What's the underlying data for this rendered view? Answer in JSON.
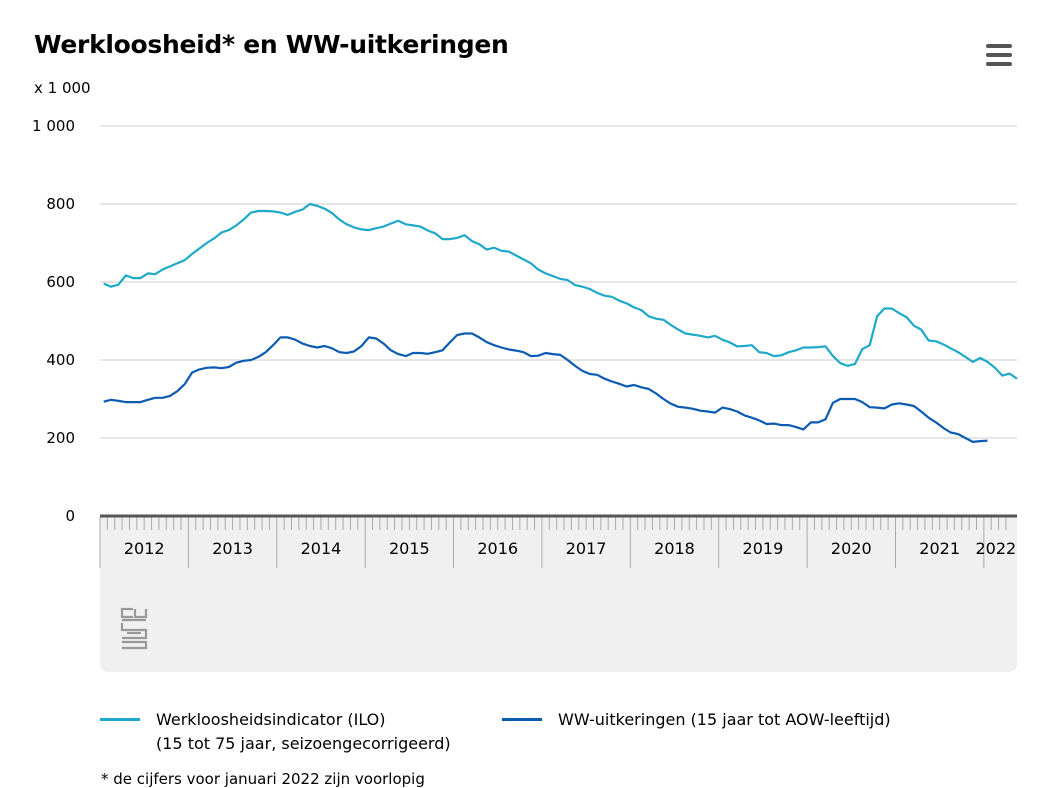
{
  "header": {
    "title": "Werkloosheid* en WW-uitkeringen",
    "unit": "x 1 000",
    "menu_icon": "hamburger-menu-icon"
  },
  "chart_data": {
    "type": "line",
    "title": "Werkloosheid* en WW-uitkeringen",
    "ylabel": "x 1 000",
    "ylim": [
      0,
      1000
    ],
    "yticks": [
      0,
      200,
      400,
      600,
      800,
      1000
    ],
    "ytick_labels": [
      "0",
      "200",
      "400",
      "600",
      "800",
      "1 000"
    ],
    "xlim": [
      "2012-01",
      "2022-01"
    ],
    "x_tick_labels": [
      "2012",
      "2013",
      "2014",
      "2015",
      "2016",
      "2017",
      "2018",
      "2019",
      "2020",
      "2021",
      "2022"
    ],
    "grid": "horizontal",
    "legend": "bottom",
    "series": [
      {
        "name": "Werkloosheidsindicator (ILO)\n(15 tot 75 jaar, seizoengecorrigeerd)",
        "color": "#1fa9c9",
        "points": [
          [
            "2012-01",
            596
          ],
          [
            "2012-02",
            588
          ],
          [
            "2012-03",
            593
          ],
          [
            "2012-04",
            617
          ],
          [
            "2012-05",
            610
          ],
          [
            "2012-06",
            610
          ],
          [
            "2012-07",
            622
          ],
          [
            "2012-08",
            620
          ],
          [
            "2012-09",
            632
          ],
          [
            "2012-10",
            640
          ],
          [
            "2012-11",
            648
          ],
          [
            "2012-12",
            656
          ],
          [
            "2013-01",
            672
          ],
          [
            "2013-02",
            686
          ],
          [
            "2013-03",
            700
          ],
          [
            "2013-04",
            712
          ],
          [
            "2013-05",
            727
          ],
          [
            "2013-06",
            733
          ],
          [
            "2013-07",
            745
          ],
          [
            "2013-08",
            760
          ],
          [
            "2013-09",
            778
          ],
          [
            "2013-10",
            782
          ],
          [
            "2013-11",
            782
          ],
          [
            "2013-12",
            781
          ],
          [
            "2014-01",
            778
          ],
          [
            "2014-02",
            772
          ],
          [
            "2014-03",
            780
          ],
          [
            "2014-04",
            786
          ],
          [
            "2014-05",
            800
          ],
          [
            "2014-06",
            795
          ],
          [
            "2014-07",
            788
          ],
          [
            "2014-08",
            777
          ],
          [
            "2014-09",
            760
          ],
          [
            "2014-10",
            748
          ],
          [
            "2014-11",
            740
          ],
          [
            "2014-12",
            735
          ],
          [
            "2015-01",
            733
          ],
          [
            "2015-02",
            738
          ],
          [
            "2015-03",
            742
          ],
          [
            "2015-04",
            750
          ],
          [
            "2015-05",
            757
          ],
          [
            "2015-06",
            748
          ],
          [
            "2015-07",
            745
          ],
          [
            "2015-08",
            742
          ],
          [
            "2015-09",
            732
          ],
          [
            "2015-10",
            725
          ],
          [
            "2015-11",
            710
          ],
          [
            "2015-12",
            710
          ],
          [
            "2016-01",
            713
          ],
          [
            "2016-02",
            720
          ],
          [
            "2016-03",
            705
          ],
          [
            "2016-04",
            697
          ],
          [
            "2016-05",
            683
          ],
          [
            "2016-06",
            688
          ],
          [
            "2016-07",
            680
          ],
          [
            "2016-08",
            678
          ],
          [
            "2016-09",
            668
          ],
          [
            "2016-10",
            658
          ],
          [
            "2016-11",
            648
          ],
          [
            "2016-12",
            632
          ],
          [
            "2017-01",
            622
          ],
          [
            "2017-02",
            615
          ],
          [
            "2017-03",
            608
          ],
          [
            "2017-04",
            605
          ],
          [
            "2017-05",
            592
          ],
          [
            "2017-06",
            588
          ],
          [
            "2017-07",
            582
          ],
          [
            "2017-08",
            572
          ],
          [
            "2017-09",
            565
          ],
          [
            "2017-10",
            562
          ],
          [
            "2017-11",
            552
          ],
          [
            "2017-12",
            545
          ],
          [
            "2018-01",
            535
          ],
          [
            "2018-02",
            528
          ],
          [
            "2018-03",
            512
          ],
          [
            "2018-04",
            506
          ],
          [
            "2018-05",
            503
          ],
          [
            "2018-06",
            490
          ],
          [
            "2018-07",
            478
          ],
          [
            "2018-08",
            468
          ],
          [
            "2018-09",
            465
          ],
          [
            "2018-10",
            462
          ],
          [
            "2018-11",
            458
          ],
          [
            "2018-12",
            462
          ],
          [
            "2019-01",
            452
          ],
          [
            "2019-02",
            445
          ],
          [
            "2019-03",
            435
          ],
          [
            "2019-04",
            436
          ],
          [
            "2019-05",
            438
          ],
          [
            "2019-06",
            420
          ],
          [
            "2019-07",
            418
          ],
          [
            "2019-08",
            410
          ],
          [
            "2019-09",
            412
          ],
          [
            "2019-10",
            420
          ],
          [
            "2019-11",
            425
          ],
          [
            "2019-12",
            432
          ],
          [
            "2020-01",
            432
          ],
          [
            "2020-02",
            433
          ],
          [
            "2020-03",
            435
          ],
          [
            "2020-04",
            410
          ],
          [
            "2020-05",
            392
          ],
          [
            "2020-06",
            385
          ],
          [
            "2020-07",
            390
          ],
          [
            "2020-08",
            428
          ],
          [
            "2020-09",
            438
          ],
          [
            "2020-10",
            512
          ],
          [
            "2020-11",
            532
          ],
          [
            "2020-12",
            532
          ],
          [
            "2021-01",
            520
          ],
          [
            "2021-02",
            510
          ],
          [
            "2021-03",
            488
          ],
          [
            "2021-04",
            478
          ],
          [
            "2021-05",
            450
          ],
          [
            "2021-06",
            448
          ],
          [
            "2021-07",
            440
          ],
          [
            "2021-08",
            430
          ],
          [
            "2021-09",
            420
          ],
          [
            "2021-10",
            408
          ],
          [
            "2021-11",
            395
          ],
          [
            "2021-12",
            405
          ],
          [
            "2022-01",
            395
          ],
          [
            "2022-02",
            380
          ],
          [
            "2022-03",
            360
          ],
          [
            "2022-04",
            365
          ],
          [
            "2022-05",
            352
          ]
        ]
      },
      {
        "name": "WW-uitkeringen (15 jaar tot AOW-leeftijd)",
        "color": "#0b5bb2",
        "points": [
          [
            "2012-01",
            293
          ],
          [
            "2012-02",
            298
          ],
          [
            "2012-03",
            295
          ],
          [
            "2012-04",
            292
          ],
          [
            "2012-05",
            292
          ],
          [
            "2012-06",
            292
          ],
          [
            "2012-07",
            298
          ],
          [
            "2012-08",
            303
          ],
          [
            "2012-09",
            303
          ],
          [
            "2012-10",
            308
          ],
          [
            "2012-11",
            320
          ],
          [
            "2012-12",
            338
          ],
          [
            "2013-01",
            368
          ],
          [
            "2013-02",
            376
          ],
          [
            "2013-03",
            380
          ],
          [
            "2013-04",
            381
          ],
          [
            "2013-05",
            379
          ],
          [
            "2013-06",
            382
          ],
          [
            "2013-07",
            393
          ],
          [
            "2013-08",
            398
          ],
          [
            "2013-09",
            400
          ],
          [
            "2013-10",
            408
          ],
          [
            "2013-11",
            420
          ],
          [
            "2013-12",
            438
          ],
          [
            "2014-01",
            458
          ],
          [
            "2014-02",
            458
          ],
          [
            "2014-03",
            452
          ],
          [
            "2014-04",
            442
          ],
          [
            "2014-05",
            436
          ],
          [
            "2014-06",
            432
          ],
          [
            "2014-07",
            436
          ],
          [
            "2014-08",
            430
          ],
          [
            "2014-09",
            420
          ],
          [
            "2014-10",
            418
          ],
          [
            "2014-11",
            422
          ],
          [
            "2014-12",
            436
          ],
          [
            "2015-01",
            458
          ],
          [
            "2015-02",
            455
          ],
          [
            "2015-03",
            442
          ],
          [
            "2015-04",
            425
          ],
          [
            "2015-05",
            415
          ],
          [
            "2015-06",
            410
          ],
          [
            "2015-07",
            418
          ],
          [
            "2015-08",
            418
          ],
          [
            "2015-09",
            416
          ],
          [
            "2015-10",
            420
          ],
          [
            "2015-11",
            425
          ],
          [
            "2015-12",
            445
          ],
          [
            "2016-01",
            464
          ],
          [
            "2016-02",
            468
          ],
          [
            "2016-03",
            468
          ],
          [
            "2016-04",
            458
          ],
          [
            "2016-05",
            446
          ],
          [
            "2016-06",
            438
          ],
          [
            "2016-07",
            432
          ],
          [
            "2016-08",
            427
          ],
          [
            "2016-09",
            424
          ],
          [
            "2016-10",
            420
          ],
          [
            "2016-11",
            410
          ],
          [
            "2016-12",
            411
          ],
          [
            "2017-01",
            418
          ],
          [
            "2017-02",
            415
          ],
          [
            "2017-03",
            413
          ],
          [
            "2017-04",
            400
          ],
          [
            "2017-05",
            385
          ],
          [
            "2017-06",
            372
          ],
          [
            "2017-07",
            364
          ],
          [
            "2017-08",
            362
          ],
          [
            "2017-09",
            352
          ],
          [
            "2017-10",
            345
          ],
          [
            "2017-11",
            339
          ],
          [
            "2017-12",
            332
          ],
          [
            "2018-01",
            336
          ],
          [
            "2018-02",
            330
          ],
          [
            "2018-03",
            326
          ],
          [
            "2018-04",
            314
          ],
          [
            "2018-05",
            300
          ],
          [
            "2018-06",
            288
          ],
          [
            "2018-07",
            280
          ],
          [
            "2018-08",
            278
          ],
          [
            "2018-09",
            275
          ],
          [
            "2018-10",
            270
          ],
          [
            "2018-11",
            268
          ],
          [
            "2018-12",
            265
          ],
          [
            "2019-01",
            278
          ],
          [
            "2019-02",
            274
          ],
          [
            "2019-03",
            268
          ],
          [
            "2019-04",
            258
          ],
          [
            "2019-05",
            252
          ],
          [
            "2019-06",
            245
          ],
          [
            "2019-07",
            236
          ],
          [
            "2019-08",
            237
          ],
          [
            "2019-09",
            233
          ],
          [
            "2019-10",
            233
          ],
          [
            "2019-11",
            228
          ],
          [
            "2019-12",
            222
          ],
          [
            "2020-01",
            240
          ],
          [
            "2020-02",
            240
          ],
          [
            "2020-03",
            248
          ],
          [
            "2020-04",
            290
          ],
          [
            "2020-05",
            300
          ],
          [
            "2020-06",
            300
          ],
          [
            "2020-07",
            300
          ],
          [
            "2020-08",
            292
          ],
          [
            "2020-09",
            279
          ],
          [
            "2020-10",
            278
          ],
          [
            "2020-11",
            276
          ],
          [
            "2020-12",
            286
          ],
          [
            "2021-01",
            289
          ],
          [
            "2021-02",
            286
          ],
          [
            "2021-03",
            282
          ],
          [
            "2021-04",
            268
          ],
          [
            "2021-05",
            252
          ],
          [
            "2021-06",
            240
          ],
          [
            "2021-07",
            226
          ],
          [
            "2021-08",
            214
          ],
          [
            "2021-09",
            210
          ],
          [
            "2021-10",
            200
          ],
          [
            "2021-11",
            190
          ],
          [
            "2021-12",
            192
          ],
          [
            "2022-01",
            193
          ]
        ]
      }
    ]
  },
  "legend": {
    "items": [
      {
        "label": "Werkloosheidsindicator (ILO)\n(15 tot 75 jaar, seizoengecorrigeerd)",
        "color": "#1fa9c9"
      },
      {
        "label": "WW-uitkeringen (15 jaar tot AOW-leeftijd)",
        "color": "#0b5bb2"
      }
    ]
  },
  "footnote": "* de cijfers voor januari 2022 zijn voorlopig",
  "logo_icon": "cbs-logo-icon"
}
